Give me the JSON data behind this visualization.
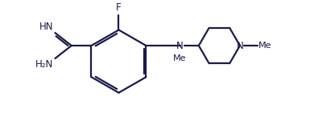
{
  "bg_color": "#ffffff",
  "line_color": "#1a1a4e",
  "line_width": 1.6,
  "font_size": 8.5,
  "figsize": [
    3.85,
    1.5
  ],
  "dpi": 100,
  "xlim": [
    0.0,
    11.5
  ],
  "ylim": [
    0.5,
    5.5
  ]
}
